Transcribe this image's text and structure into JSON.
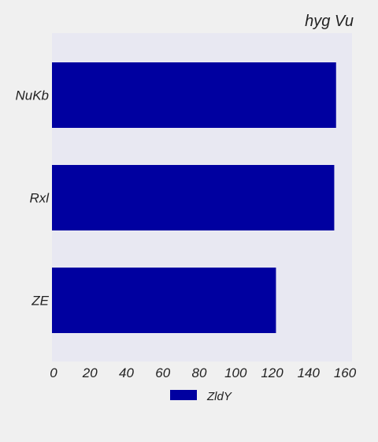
{
  "chart_data": {
    "type": "bar",
    "orientation": "horizontal",
    "title": "hyg Vu",
    "categories": [
      "NuKb",
      "Rxl",
      "ZE"
    ],
    "series": [
      {
        "name": "ZldY",
        "values": [
          156,
          155,
          123
        ],
        "color": "#0000a0"
      }
    ],
    "xlim": [
      0,
      160
    ],
    "xticks": [
      0,
      20,
      40,
      60,
      80,
      100,
      120,
      140,
      160
    ],
    "grid": false,
    "legend_position": "bottom-center",
    "colors": {
      "page_background": "#f0f0f0",
      "plot_background": "#e8e8f2",
      "bar": "#0000a0",
      "text": "#222222"
    }
  }
}
